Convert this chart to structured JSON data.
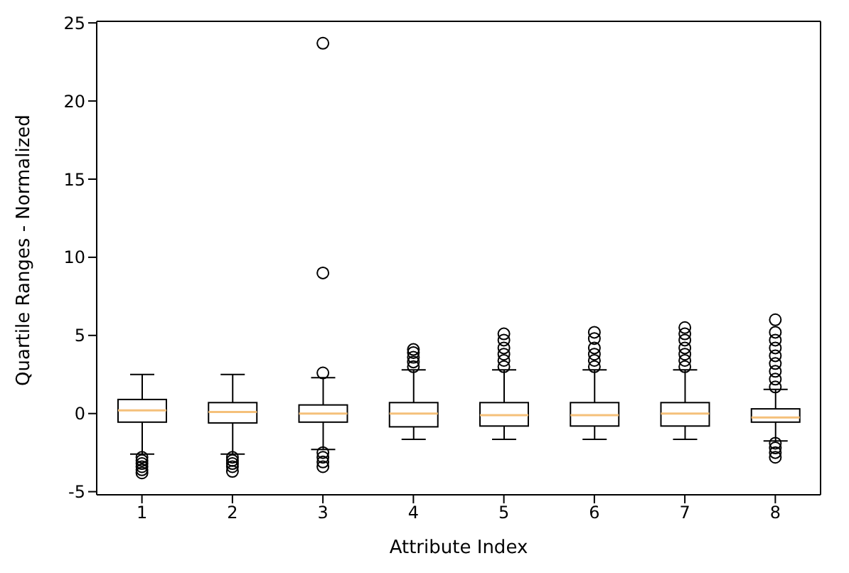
{
  "chart_data": {
    "type": "box",
    "xlabel": "Attribute Index",
    "ylabel": "Quartile Ranges - Normalized",
    "categories": [
      "1",
      "2",
      "3",
      "4",
      "5",
      "6",
      "7",
      "8"
    ],
    "boxes": [
      {
        "low": -2.6,
        "q1": -0.55,
        "median": 0.2,
        "q3": 0.9,
        "high": 2.5,
        "outliers": [
          -2.8,
          -3.0,
          -3.2,
          -3.4,
          -3.6,
          -3.8
        ]
      },
      {
        "low": -2.6,
        "q1": -0.6,
        "median": 0.1,
        "q3": 0.7,
        "high": 2.5,
        "outliers": [
          -2.8,
          -3.0,
          -3.2,
          -3.4,
          -3.7
        ]
      },
      {
        "low": -2.3,
        "q1": -0.55,
        "median": 0,
        "q3": 0.55,
        "high": 2.3,
        "outliers": [
          -2.5,
          -2.8,
          -3.1,
          -3.4,
          2.6,
          9,
          23.7
        ]
      },
      {
        "low": -1.65,
        "q1": -0.85,
        "median": 0,
        "q3": 0.7,
        "high": 2.8,
        "outliers": [
          3.0,
          3.3,
          3.6,
          3.9,
          4.1
        ]
      },
      {
        "low": -1.65,
        "q1": -0.8,
        "median": -0.1,
        "q3": 0.7,
        "high": 2.8,
        "outliers": [
          3.0,
          3.4,
          3.8,
          4.2,
          4.7,
          5.1
        ]
      },
      {
        "low": -1.65,
        "q1": -0.8,
        "median": -0.1,
        "q3": 0.7,
        "high": 2.8,
        "outliers": [
          3.0,
          3.4,
          3.8,
          4.2,
          4.8,
          5.2
        ]
      },
      {
        "low": -1.65,
        "q1": -0.8,
        "median": 0,
        "q3": 0.7,
        "high": 2.8,
        "outliers": [
          3.0,
          3.4,
          3.8,
          4.2,
          4.7,
          5.1,
          5.5
        ]
      },
      {
        "low": -1.75,
        "q1": -0.55,
        "median": -0.25,
        "q3": 0.3,
        "high": 1.55,
        "outliers": [
          1.7,
          2.2,
          2.7,
          3.2,
          3.7,
          4.2,
          4.7,
          5.2,
          6.0,
          -1.9,
          -2.2,
          -2.5,
          -2.8
        ]
      }
    ],
    "ylim": [
      -5.2,
      25.1
    ],
    "yticks": [
      -5,
      0,
      5,
      10,
      15,
      20,
      25
    ],
    "grid": false,
    "legend": false
  }
}
